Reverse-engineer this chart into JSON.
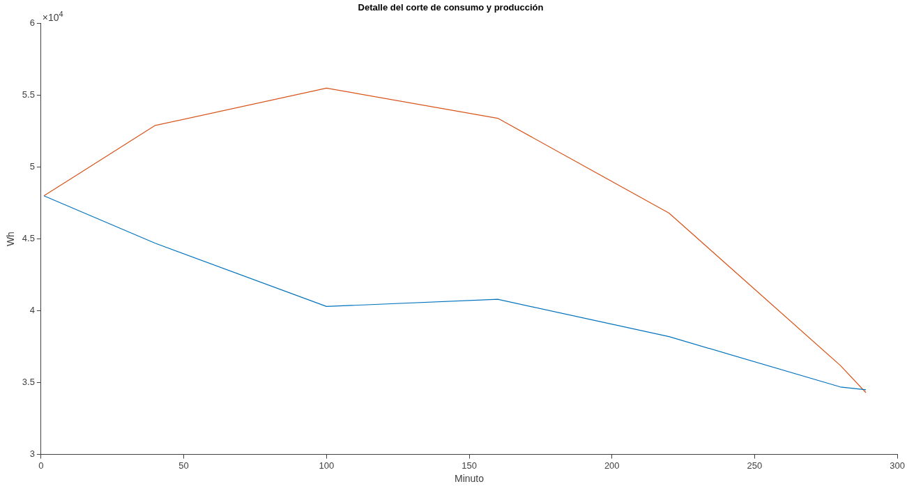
{
  "chart_data": {
    "type": "line",
    "title": "Detalle del corte de consumo y producción",
    "xlabel": "Minuto",
    "ylabel": "Wh",
    "annotations": [
      "×10$^{4}$"
    ],
    "x": [
      1,
      40,
      100,
      160,
      220,
      280,
      289
    ],
    "series": [
      {
        "color": "#0072bd",
        "values": [
          4.8,
          4.47,
          4.03,
          4.08,
          3.82,
          3.47,
          3.45
        ]
      },
      {
        "color": "#d95319",
        "values": [
          4.8,
          5.29,
          5.55,
          5.34,
          4.68,
          3.62,
          3.43
        ]
      }
    ],
    "xlim": [
      0,
      300
    ],
    "xticks": [
      0,
      50,
      100,
      150,
      200,
      250,
      300
    ],
    "ylim": [
      3,
      6
    ],
    "yticks": [
      3,
      3.5,
      4,
      4.5,
      5,
      5.5,
      6
    ],
    "grid": false,
    "legend": false,
    "marker": "none",
    "line_style": "solid"
  }
}
